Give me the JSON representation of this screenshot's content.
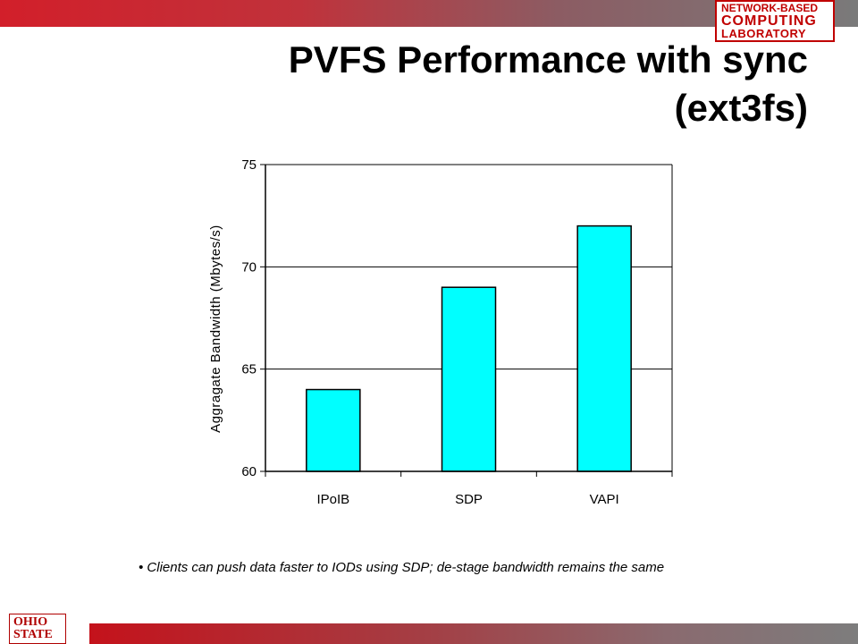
{
  "branding": {
    "lab_line1": "NETWORK-BASED",
    "lab_line2": "COMPUTING",
    "lab_line3": "LABORATORY",
    "university_line1": "OHIO",
    "university_line2": "STATE",
    "brand_red": "#c00000"
  },
  "slide": {
    "title_line1": "PVFS Performance with sync",
    "title_line2": "(ext3fs)",
    "note": "• Clients can push data faster to IODs using SDP; de-stage bandwidth remains the same"
  },
  "chart_data": {
    "type": "bar",
    "categories": [
      "IPoIB",
      "SDP",
      "VAPI"
    ],
    "values": [
      64,
      69,
      72
    ],
    "ylabel": "Aggragate Bandwidth (Mbytes/s)",
    "xlabel": "",
    "ylim": [
      60,
      75
    ],
    "yticks": [
      60,
      65,
      70,
      75
    ],
    "grid": true,
    "legend": "none",
    "bar_color": "#00ffff"
  }
}
